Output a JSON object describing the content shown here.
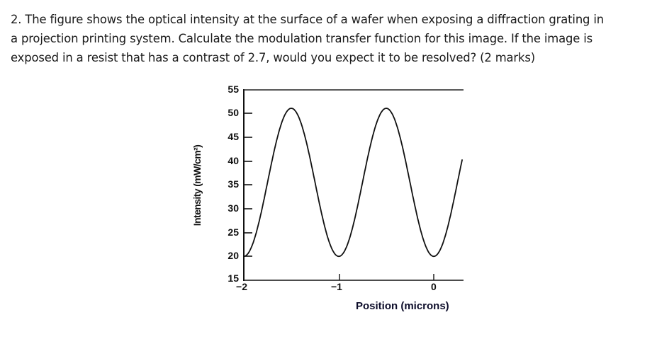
{
  "question": {
    "lines": [
      "2. The figure shows the optical intensity at the surface of a wafer when exposing a diffraction grating in",
      "a projection printing system. Calculate the modulation transfer function for this image. If the image is",
      "exposed in a resist that has a contrast of 2.7, would you expect it to be resolved? (2 marks)"
    ]
  },
  "chart_data": {
    "type": "line",
    "title": "",
    "xlabel": "Position (microns)",
    "ylabel": "Intensity (mW/cm²)",
    "xlim": [
      -2,
      0.3
    ],
    "ylim": [
      15,
      55
    ],
    "x_ticks": [
      "-2",
      "-1",
      "0"
    ],
    "y_ticks": [
      "55",
      "50",
      "45",
      "40",
      "35",
      "30",
      "25",
      "20",
      "15"
    ],
    "grid": false,
    "legend": null,
    "series": [
      {
        "name": "Intensity",
        "x": [
          -2.0,
          -1.75,
          -1.5,
          -1.25,
          -1.0,
          -0.75,
          -0.5,
          -0.25,
          0.0,
          0.25,
          0.3
        ],
        "y": [
          20,
          35.5,
          51,
          35.5,
          20,
          35.5,
          51,
          35.5,
          20,
          35.5,
          38.5
        ]
      }
    ],
    "annotations": {
      "I_max": 51,
      "I_min": 20,
      "period_microns": 1.0
    }
  }
}
